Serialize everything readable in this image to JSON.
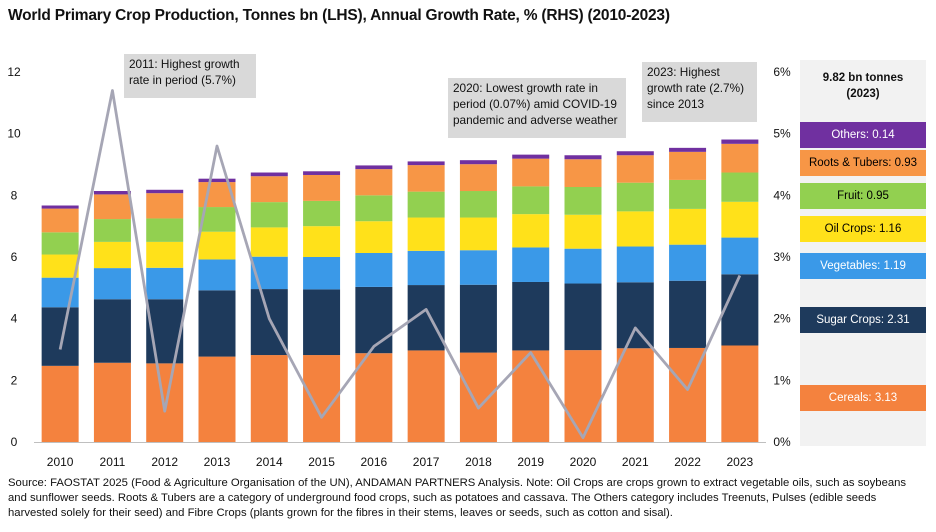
{
  "title": "World Primary Crop Production, Tonnes bn (LHS), Annual Growth Rate, % (RHS) (2010-2023)",
  "source": "Source: FAOSTAT 2025 (Food & Agriculture Organisation of the UN), ANDAMAN PARTNERS Analysis. Note: Oil Crops are crops grown to extract vegetable oils, such as soybeans and sunflower seeds. Roots & Tubers are a category of underground food crops, such as potatoes and cassava. The Others category includes Treenuts, Pulses (edible seeds harvested solely for their seed) and Fibre Crops (plants grown for the fibres in their stems, leaves or seeds, such as cotton and sisal).",
  "annotations": {
    "a2011": "2011: Highest growth rate in period (5.7%)",
    "a2020": "2020: Lowest growth rate in period (0.07%) amid COVID-19 pandemic and adverse weather",
    "a2023": "2023: Highest growth rate (2.7%) since 2013"
  },
  "panel": {
    "header": "9.82 bn tonnes (2023)",
    "items": [
      {
        "label": "Others: 0.14",
        "color": "#7030a0",
        "text_color": "#ffffff"
      },
      {
        "label": "Roots & Tubers: 0.93",
        "color": "#f79646",
        "text_color": "#000000"
      },
      {
        "label": "Fruit: 0.95",
        "color": "#92d050",
        "text_color": "#000000"
      },
      {
        "label": "Oil Crops: 1.16",
        "color": "#ffe11a",
        "text_color": "#000000"
      },
      {
        "label": "Vegetables: 1.19",
        "color": "#3a99e8",
        "text_color": "#ffffff"
      },
      {
        "label": "Sugar Crops: 2.31",
        "color": "#1e3a5c",
        "text_color": "#ffffff"
      },
      {
        "label": "Cereals: 3.13",
        "color": "#f4823e",
        "text_color": "#ffffff"
      }
    ]
  },
  "chart_data": {
    "type": "bar",
    "stacked": true,
    "categories": [
      "2010",
      "2011",
      "2012",
      "2013",
      "2014",
      "2015",
      "2016",
      "2017",
      "2018",
      "2019",
      "2020",
      "2021",
      "2022",
      "2023"
    ],
    "series": [
      {
        "name": "Cereals",
        "color": "#f4823e",
        "values": [
          2.47,
          2.57,
          2.55,
          2.77,
          2.82,
          2.82,
          2.88,
          2.97,
          2.9,
          2.97,
          2.98,
          3.04,
          3.05,
          3.13
        ]
      },
      {
        "name": "Sugar Crops",
        "color": "#1e3a5c",
        "values": [
          1.9,
          2.06,
          2.08,
          2.15,
          2.14,
          2.13,
          2.15,
          2.12,
          2.2,
          2.22,
          2.16,
          2.14,
          2.18,
          2.31
        ]
      },
      {
        "name": "Vegetables",
        "color": "#3a99e8",
        "values": [
          0.96,
          1.01,
          1.02,
          1.0,
          1.05,
          1.05,
          1.1,
          1.11,
          1.12,
          1.12,
          1.13,
          1.16,
          1.17,
          1.19
        ]
      },
      {
        "name": "Oil Crops",
        "color": "#ffe11a",
        "values": [
          0.75,
          0.85,
          0.84,
          0.9,
          0.95,
          1.0,
          1.03,
          1.08,
          1.06,
          1.08,
          1.1,
          1.14,
          1.16,
          1.16
        ]
      },
      {
        "name": "Fruit",
        "color": "#92d050",
        "values": [
          0.72,
          0.74,
          0.76,
          0.8,
          0.82,
          0.82,
          0.84,
          0.84,
          0.86,
          0.9,
          0.9,
          0.93,
          0.94,
          0.95
        ]
      },
      {
        "name": "Roots & Tubers",
        "color": "#f79646",
        "values": [
          0.77,
          0.8,
          0.82,
          0.81,
          0.84,
          0.84,
          0.85,
          0.86,
          0.87,
          0.9,
          0.9,
          0.89,
          0.91,
          0.93
        ]
      },
      {
        "name": "Others",
        "color": "#7030a0",
        "values": [
          0.1,
          0.11,
          0.11,
          0.11,
          0.12,
          0.12,
          0.12,
          0.12,
          0.13,
          0.13,
          0.13,
          0.13,
          0.13,
          0.14
        ]
      }
    ],
    "growth_rate": {
      "name": "Annual Growth Rate",
      "color": "#a6a6b5",
      "values": [
        1.5,
        5.7,
        0.5,
        4.8,
        2.0,
        0.4,
        1.55,
        2.15,
        0.55,
        1.45,
        0.07,
        1.85,
        0.85,
        2.7
      ]
    },
    "ylim_left": [
      0,
      12
    ],
    "yticks_left": [
      "0",
      "2",
      "4",
      "6",
      "8",
      "10",
      "12"
    ],
    "ylim_right": [
      0,
      6
    ],
    "yticks_right": [
      "0%",
      "1%",
      "2%",
      "3%",
      "4%",
      "5%",
      "6%"
    ],
    "grid": false
  }
}
